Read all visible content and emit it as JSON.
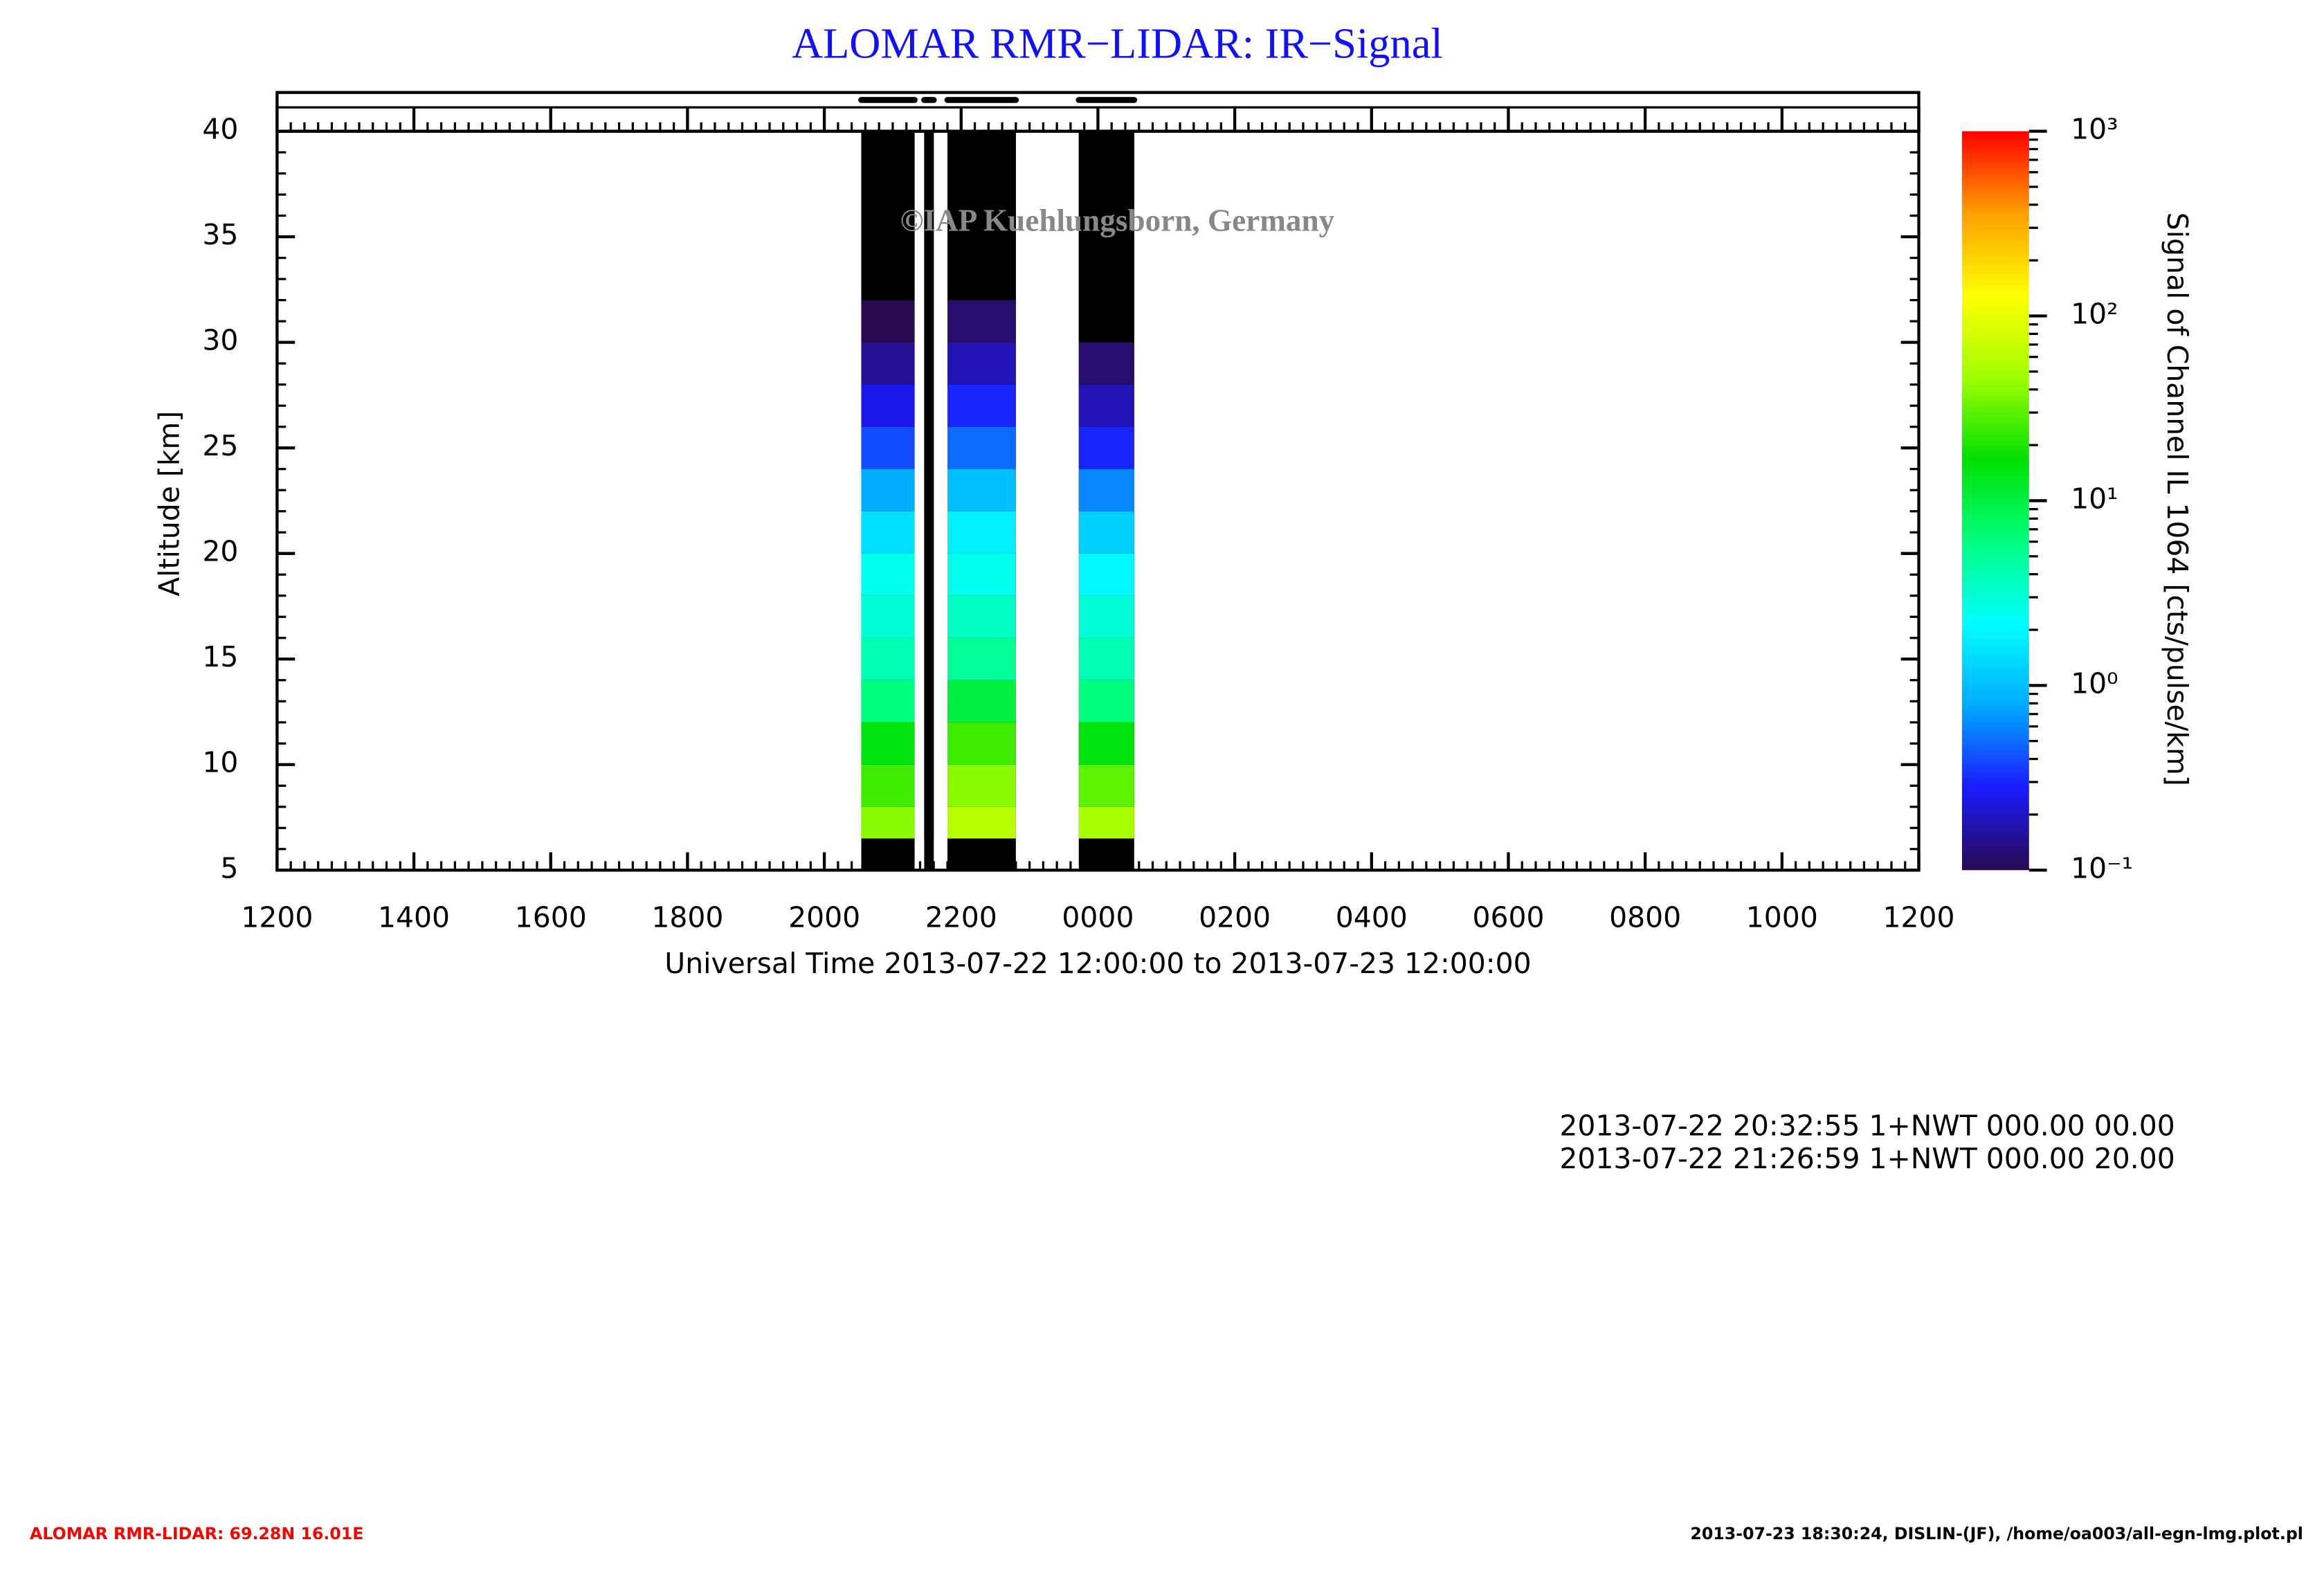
{
  "chart_data": {
    "type": "lidar-heatmap",
    "title": "ALOMAR RMR−LIDAR: IR−Signal",
    "watermark": "©IAP Kuehlungsborn, Germany",
    "x_label": "Universal Time 2013-07-22 12:00:00 to 2013-07-23 12:00:00",
    "y_label": "Altitude [km]",
    "xlim": [
      12,
      36
    ],
    "xticks": [
      {
        "value": 12,
        "label": "1200"
      },
      {
        "value": 14,
        "label": "1400"
      },
      {
        "value": 16,
        "label": "1600"
      },
      {
        "value": 18,
        "label": "1800"
      },
      {
        "value": 20,
        "label": "2000"
      },
      {
        "value": 22,
        "label": "2200"
      },
      {
        "value": 24,
        "label": "0000"
      },
      {
        "value": 26,
        "label": "0200"
      },
      {
        "value": 28,
        "label": "0400"
      },
      {
        "value": 30,
        "label": "0600"
      },
      {
        "value": 32,
        "label": "0800"
      },
      {
        "value": 34,
        "label": "1000"
      },
      {
        "value": 36,
        "label": "1200"
      }
    ],
    "ylim": [
      5,
      40
    ],
    "yticks": [
      5,
      10,
      15,
      20,
      25,
      30,
      35,
      40
    ],
    "altitude_bins": [
      6.5,
      8,
      10,
      12,
      14,
      16,
      18,
      20,
      22,
      24,
      26,
      28,
      30,
      32,
      34,
      40
    ],
    "measurements": [
      {
        "start": 20.54,
        "end": 21.32,
        "signal": [
          40,
          25,
          15,
          6,
          4,
          3,
          2.5,
          1.5,
          0.8,
          0.4,
          0.25,
          0.15,
          0.1,
          0.08,
          0.05
        ]
      },
      {
        "start": 21.46,
        "end": 21.6,
        "signal": [
          0.05,
          0.05,
          0.05,
          0.05,
          0.05,
          0.05,
          0.05,
          0.05,
          0.05,
          0.05,
          0.05,
          0.05,
          0.05,
          0.05,
          0.05
        ]
      },
      {
        "start": 21.8,
        "end": 22.8,
        "signal": [
          60,
          40,
          25,
          10,
          5,
          3.5,
          2.5,
          1.8,
          1,
          0.5,
          0.3,
          0.18,
          0.12,
          0.08,
          0.05
        ]
      },
      {
        "start": 23.72,
        "end": 24.53,
        "signal": [
          50,
          30,
          15,
          6,
          4,
          3,
          2,
          1.2,
          0.6,
          0.3,
          0.18,
          0.12,
          0.08,
          0.05,
          0.05
        ]
      }
    ],
    "color_scale": "log",
    "clim": [
      0.1,
      1000
    ],
    "cticks": [
      {
        "value": 0.1,
        "label": "10⁻¹"
      },
      {
        "value": 1,
        "label": "10⁰"
      },
      {
        "value": 10,
        "label": "10¹"
      },
      {
        "value": 100,
        "label": "10²"
      },
      {
        "value": 1000,
        "label": "10³"
      }
    ],
    "colorbar_label": "Signal of Channel IL 1064 [cts/pulse/km]",
    "colormap": [
      "#2a0a50",
      "#1a1aff",
      "#00aaff",
      "#00ffff",
      "#00ff80",
      "#00e000",
      "#a0ff00",
      "#ffff00",
      "#ffa000",
      "#ff0000"
    ],
    "info_lines": [
      "2013-07-22 20:32:55 1+NWT 000.00 00.00",
      "2013-07-22 21:26:59 1+NWT 000.00 20.00"
    ],
    "footer_left": "ALOMAR RMR-LIDAR: 69.28N 16.01E",
    "footer_right": "2013-07-23 18:30:24, DISLIN-(JF), /home/oa003/all-egn-lmg.plot.pl"
  }
}
